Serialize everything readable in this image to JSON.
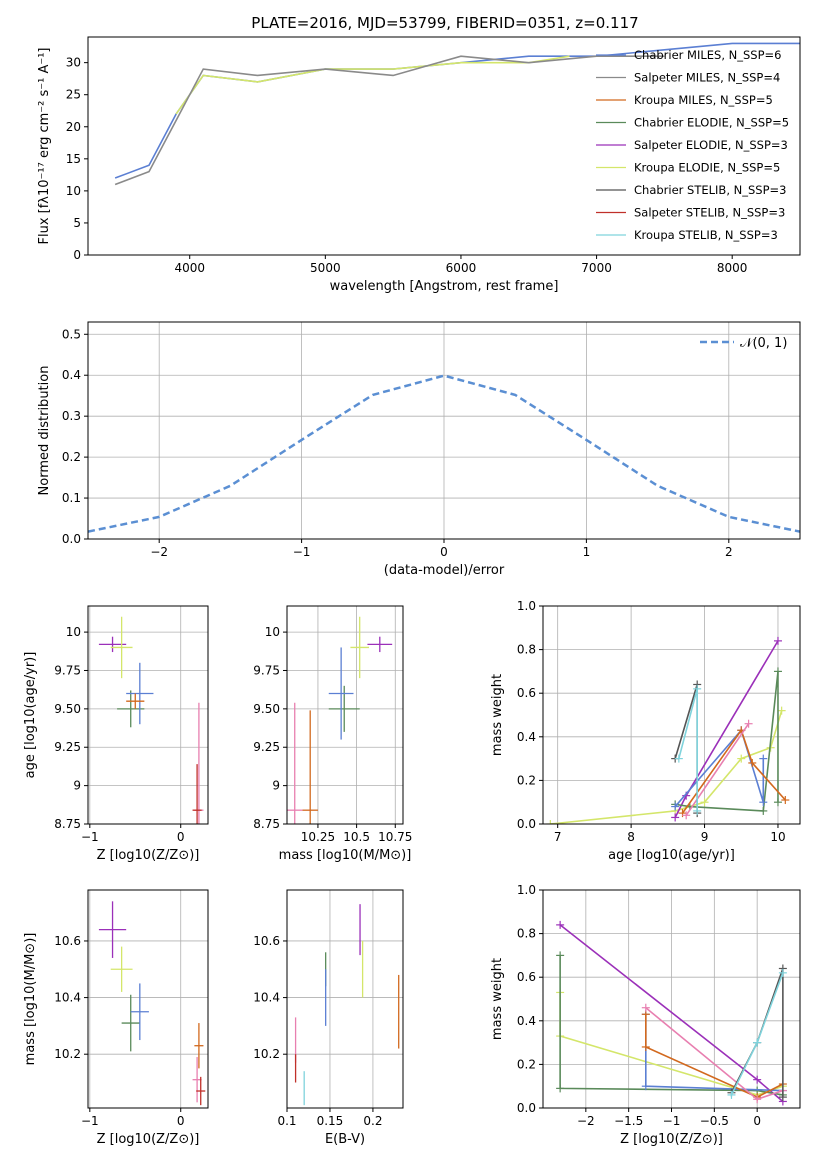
{
  "figure": {
    "title": "PLATE=2016, MJD=53799, FIBERID=0351, z=0.117"
  },
  "colors": {
    "Chabrier MILES": "#5b7fd3",
    "Salpeter MILES": "#8a8a8a",
    "Kroupa MILES": "#d2691e",
    "Chabrier ELODIE": "#5a8a5a",
    "Salpeter ELODIE": "#9b30b9",
    "Kroupa ELODIE": "#d4e66a",
    "Chabrier STELIB": "#555555",
    "Salpeter STELIB": "#c0302a",
    "Kroupa STELIB": "#7fd3dc",
    "Pink": "#e87fb0",
    "Normal": "#5b8fd3"
  },
  "chart_data": [
    {
      "id": "spectrum",
      "type": "line",
      "title": "PLATE=2016, MJD=53799, FIBERID=0351, z=0.117",
      "xlabel": "wavelength [Angstrom, rest frame]",
      "ylabel": "Flux [fλ10⁻¹⁷ erg cm⁻² s⁻¹ A⁻¹]",
      "xlim": [
        3250,
        8500
      ],
      "ylim": [
        0,
        34
      ],
      "xticks": [
        4000,
        5000,
        6000,
        7000,
        8000
      ],
      "yticks": [
        0,
        5,
        10,
        15,
        20,
        25,
        30
      ],
      "legend_position": "right",
      "legend": [
        "Chabrier MILES, N_SSP=6",
        "Salpeter MILES, N_SSP=4",
        "Kroupa MILES, N_SSP=5",
        "Chabrier ELODIE, N_SSP=5",
        "Salpeter ELODIE, N_SSP=3",
        "Kroupa ELODIE, N_SSP=5",
        "Chabrier STELIB, N_SSP=3",
        "Salpeter STELIB, N_SSP=3",
        "Kroupa STELIB, N_SSP=3"
      ],
      "series": [
        {
          "name": "Chabrier MILES, N_SSP=6",
          "x": [
            3450,
            3700,
            3900,
            4100,
            4500,
            5000,
            5500,
            6000,
            6500,
            7000,
            7500,
            8000,
            8500
          ],
          "y": [
            12,
            14,
            22,
            28,
            27,
            29,
            29,
            30,
            31,
            31,
            32,
            33,
            33
          ]
        },
        {
          "name": "Kroupa ELODIE, N_SSP=5",
          "x": [
            3900,
            4100,
            4500,
            5000,
            5500,
            6000,
            6500,
            6800
          ],
          "y": [
            22,
            28,
            27,
            29,
            29,
            30,
            30,
            31
          ]
        },
        {
          "name": "Salpeter MILES, N_SSP=4",
          "x": [
            3450,
            3700,
            3900,
            4100,
            4500,
            5000,
            5500,
            6000,
            6500,
            7000,
            7500
          ],
          "y": [
            11,
            13,
            21,
            29,
            28,
            29,
            28,
            31,
            30,
            31,
            31
          ]
        }
      ]
    },
    {
      "id": "residuals",
      "type": "line",
      "xlabel": "(data-model)/error",
      "ylabel": "Normed distribution",
      "xlim": [
        -2.5,
        2.5
      ],
      "ylim": [
        0,
        0.53
      ],
      "xticks": [
        -2,
        -1,
        0,
        1,
        2
      ],
      "yticks": [
        0.0,
        0.1,
        0.2,
        0.3,
        0.4,
        0.5
      ],
      "legend": [
        "𝒩(0, 1)"
      ],
      "legend_position": "top-right",
      "series": [
        {
          "name": "𝒩(0, 1)",
          "x": [
            -2.5,
            -2.0,
            -1.5,
            -1.0,
            -0.5,
            0.0,
            0.5,
            1.0,
            1.5,
            2.0,
            2.5
          ],
          "y": [
            0.018,
            0.054,
            0.13,
            0.242,
            0.352,
            0.399,
            0.352,
            0.242,
            0.13,
            0.054,
            0.018
          ]
        }
      ]
    },
    {
      "id": "age_vs_Z",
      "type": "scatter",
      "xlabel": "Z [log10(Z/Z⊙)]",
      "ylabel": "age [log10(age/yr)]",
      "xlim": [
        -1.02,
        0.3
      ],
      "ylim": [
        8.75,
        10.17
      ],
      "xticks": [
        -1,
        0
      ],
      "yticks": [
        8.75,
        9.0,
        9.25,
        9.5,
        9.75,
        10.0
      ],
      "points": [
        {
          "x": -0.75,
          "y": 9.92,
          "xerr": 0.15,
          "yerr": 0.05
        },
        {
          "x": -0.65,
          "y": 9.9,
          "xerr": 0.12,
          "yerr": 0.2
        },
        {
          "x": -0.55,
          "y": 9.5,
          "xerr": 0.15,
          "yerr": 0.12
        },
        {
          "x": -0.45,
          "y": 9.6,
          "xerr": 0.15,
          "yerr": 0.2
        },
        {
          "x": -0.5,
          "y": 9.55,
          "xerr": 0.1,
          "yerr": 0.05
        },
        {
          "x": 0.2,
          "y": 8.84,
          "xerr": 0.05,
          "yerr": 0.7
        },
        {
          "x": 0.18,
          "y": 8.84,
          "xerr": 0.05,
          "yerr": 0.3
        }
      ]
    },
    {
      "id": "age_vs_mass",
      "type": "scatter",
      "xlabel": "mass [log10(M/M⊙)]",
      "xlim": [
        10.05,
        10.8
      ],
      "ylim": [
        8.75,
        10.17
      ],
      "xticks": [
        10.25,
        10.5,
        10.75
      ],
      "yticks": [
        8.75,
        9.0,
        9.25,
        9.5,
        9.75,
        10.0
      ],
      "points": [
        {
          "x": 10.65,
          "y": 9.92,
          "xerr": 0.08,
          "yerr": 0.05
        },
        {
          "x": 10.52,
          "y": 9.9,
          "xerr": 0.06,
          "yerr": 0.2
        },
        {
          "x": 10.42,
          "y": 9.5,
          "xerr": 0.1,
          "yerr": 0.15
        },
        {
          "x": 10.4,
          "y": 9.6,
          "xerr": 0.08,
          "yerr": 0.3
        },
        {
          "x": 10.2,
          "y": 8.84,
          "xerr": 0.05,
          "yerr": 0.65
        },
        {
          "x": 10.1,
          "y": 8.84,
          "xerr": 0.05,
          "yerr": 0.7
        }
      ]
    },
    {
      "id": "weight_vs_age",
      "type": "line",
      "xlabel": "age  [log10(age/yr)]",
      "ylabel": "mass weight",
      "xlim": [
        6.8,
        10.3
      ],
      "ylim": [
        0,
        1.0
      ],
      "xticks": [
        7,
        8,
        9,
        10
      ],
      "yticks": [
        0.0,
        0.2,
        0.4,
        0.6,
        0.8,
        1.0
      ],
      "series": [
        {
          "name": "Kroupa ELODIE",
          "x": [
            6.9,
            8.6,
            9.0,
            9.5,
            9.9,
            10.05
          ],
          "y": [
            0.0,
            0.06,
            0.1,
            0.3,
            0.35,
            0.52
          ]
        },
        {
          "name": "Salpeter ELODIE",
          "x": [
            8.6,
            8.75,
            10.0
          ],
          "y": [
            0.03,
            0.13,
            0.84
          ]
        },
        {
          "name": "Chabrier ELODIE",
          "x": [
            8.6,
            8.8,
            9.8,
            10.0,
            10.0
          ],
          "y": [
            0.09,
            0.08,
            0.06,
            0.7,
            0.1
          ]
        },
        {
          "name": "Chabrier MILES",
          "x": [
            8.6,
            9.5,
            9.8,
            9.8
          ],
          "y": [
            0.08,
            0.43,
            0.1,
            0.3
          ]
        },
        {
          "name": "Kroupa MILES",
          "x": [
            8.7,
            9.5,
            9.65,
            10.1
          ],
          "y": [
            0.05,
            0.43,
            0.28,
            0.11
          ]
        },
        {
          "name": "Pink",
          "x": [
            8.75,
            9.6
          ],
          "y": [
            0.04,
            0.46
          ]
        },
        {
          "name": "Chabrier STELIB",
          "x": [
            8.6,
            8.9,
            8.9
          ],
          "y": [
            0.3,
            0.64,
            0.05
          ]
        },
        {
          "name": "Kroupa STELIB",
          "x": [
            8.65,
            8.9,
            8.9
          ],
          "y": [
            0.3,
            0.62,
            0.06
          ]
        }
      ]
    },
    {
      "id": "mass_vs_Z",
      "type": "scatter",
      "xlabel": "Z [log10(Z/Z⊙)]",
      "ylabel": "mass [log10(M/M⊙)]",
      "xlim": [
        -1.02,
        0.3
      ],
      "ylim": [
        10.01,
        10.78
      ],
      "xticks": [
        -1,
        0
      ],
      "yticks": [
        10.2,
        10.4,
        10.6
      ],
      "points": [
        {
          "x": -0.75,
          "y": 10.64,
          "xerr": 0.15,
          "yerr": 0.1
        },
        {
          "x": -0.65,
          "y": 10.5,
          "xerr": 0.12,
          "yerr": 0.08
        },
        {
          "x": -0.55,
          "y": 10.31,
          "xerr": 0.1,
          "yerr": 0.1
        },
        {
          "x": -0.45,
          "y": 10.35,
          "xerr": 0.1,
          "yerr": 0.1
        },
        {
          "x": 0.2,
          "y": 10.23,
          "xerr": 0.05,
          "yerr": 0.08
        },
        {
          "x": 0.18,
          "y": 10.11,
          "xerr": 0.05,
          "yerr": 0.08
        },
        {
          "x": 0.22,
          "y": 10.07,
          "xerr": 0.05,
          "yerr": 0.05
        }
      ]
    },
    {
      "id": "mass_vs_EBV",
      "type": "scatter",
      "xlabel": "E(B-V)",
      "xlim": [
        0.1,
        0.235
      ],
      "ylim": [
        10.01,
        10.78
      ],
      "xticks": [
        0.1,
        0.15,
        0.2
      ],
      "yticks": [
        10.2,
        10.4,
        10.6
      ],
      "points": [
        {
          "x": 0.185,
          "y": 10.64,
          "yerr": 0.09
        },
        {
          "x": 0.188,
          "y": 10.5,
          "yerr": 0.1
        },
        {
          "x": 0.145,
          "y": 10.5,
          "yerr": 0.06
        },
        {
          "x": 0.145,
          "y": 10.4,
          "yerr": 0.1
        },
        {
          "x": 0.23,
          "y": 10.35,
          "yerr": 0.13
        },
        {
          "x": 0.11,
          "y": 10.25,
          "yerr": 0.08
        },
        {
          "x": 0.11,
          "y": 10.15,
          "yerr": 0.05
        },
        {
          "x": 0.12,
          "y": 10.08,
          "yerr": 0.06
        }
      ]
    },
    {
      "id": "weight_vs_Z",
      "type": "line",
      "xlabel": "Z [log10(Z/Z⊙)]",
      "ylabel": "mass weight",
      "xlim": [
        -2.5,
        0.5
      ],
      "ylim": [
        0,
        1.0
      ],
      "xticks": [
        -2.0,
        -1.5,
        -1.0,
        -0.5,
        0.0
      ],
      "yticks": [
        0.0,
        0.2,
        0.4,
        0.6,
        0.8,
        1.0
      ],
      "series": [
        {
          "name": "Salpeter ELODIE",
          "x": [
            -2.3,
            0.0,
            0.3
          ],
          "y": [
            0.84,
            0.13,
            0.03
          ]
        },
        {
          "name": "Kroupa ELODIE",
          "x": [
            -2.3,
            -2.3,
            0.0,
            0.3
          ],
          "y": [
            0.53,
            0.33,
            0.06,
            0.1
          ]
        },
        {
          "name": "Chabrier ELODIE",
          "x": [
            -2.3,
            -2.3,
            0.0,
            0.3
          ],
          "y": [
            0.7,
            0.09,
            0.08,
            0.06
          ]
        },
        {
          "name": "Chabrier MILES",
          "x": [
            -1.3,
            -1.3,
            0.3
          ],
          "y": [
            0.43,
            0.1,
            0.08
          ]
        },
        {
          "name": "Kroupa MILES",
          "x": [
            -1.3,
            -1.3,
            0.0,
            0.3
          ],
          "y": [
            0.43,
            0.28,
            0.05,
            0.11
          ]
        },
        {
          "name": "Pink",
          "x": [
            -1.3,
            0.0,
            0.3
          ],
          "y": [
            0.46,
            0.04,
            0.08
          ]
        },
        {
          "name": "Chabrier STELIB",
          "x": [
            -0.3,
            0.0,
            0.3,
            0.3
          ],
          "y": [
            0.07,
            0.3,
            0.64,
            0.05
          ]
        },
        {
          "name": "Kroupa STELIB",
          "x": [
            -0.3,
            0.0,
            0.3
          ],
          "y": [
            0.06,
            0.3,
            0.62
          ]
        }
      ]
    }
  ]
}
